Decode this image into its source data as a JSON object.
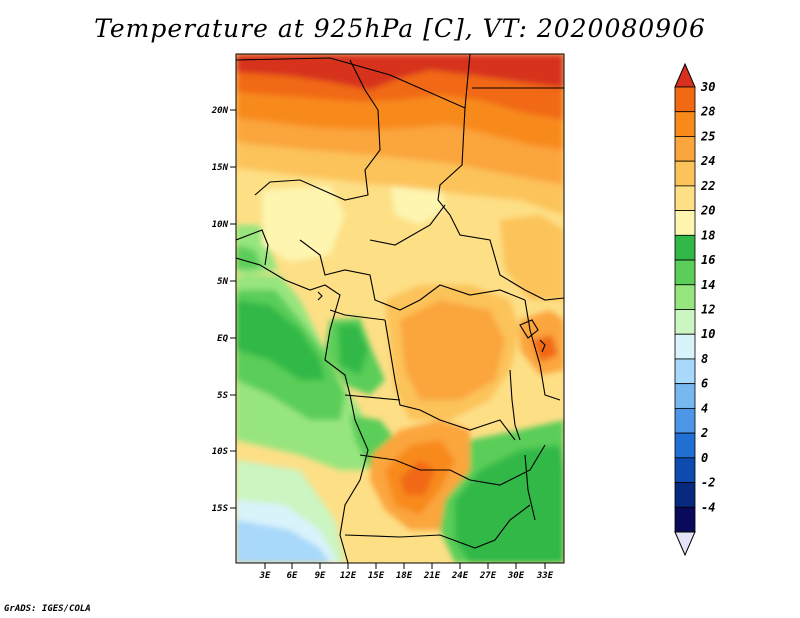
{
  "title": "Temperature at 925hPa [C], VT: 2020080906",
  "footer": "GrADS: IGES/COLA",
  "map": {
    "lat_ticks": [
      "20N",
      "15N",
      "10N",
      "5N",
      "EQ",
      "5S",
      "10S",
      "15S"
    ],
    "lon_ticks": [
      "3E",
      "6E",
      "9E",
      "12E",
      "15E",
      "18E",
      "21E",
      "24E",
      "27E",
      "30E",
      "33E"
    ]
  },
  "colorbar": {
    "labels": [
      "30",
      "28",
      "25",
      "24",
      "22",
      "20",
      "18",
      "16",
      "14",
      "12",
      "10",
      "8",
      "6",
      "4",
      "2",
      "0",
      "-2",
      "-4"
    ],
    "colors": [
      "#d7301f",
      "#f16913",
      "#f88a1a",
      "#fba53d",
      "#fcc35a",
      "#fddf86",
      "#fdf5b0",
      "#31b847",
      "#5ace59",
      "#97e57e",
      "#cbf5c1",
      "#d9f3fb",
      "#a8d8fa",
      "#78b8f0",
      "#4d95e6",
      "#2070d4",
      "#0e4bb0",
      "#082a7e",
      "#0a0a5c",
      "#e4e2f7"
    ]
  }
}
